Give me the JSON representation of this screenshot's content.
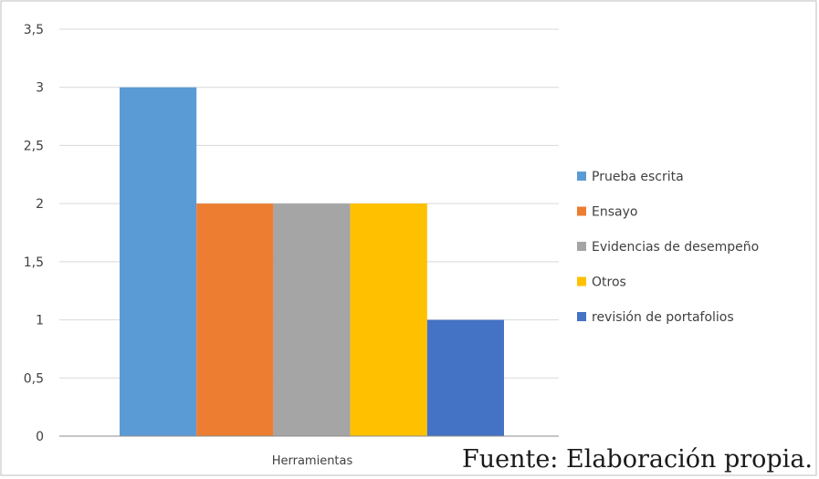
{
  "chart_data": {
    "type": "bar",
    "categories": [
      "Herramientas"
    ],
    "series": [
      {
        "name": "Prueba escrita",
        "values": [
          3
        ],
        "color": "#5B9BD5"
      },
      {
        "name": "Ensayo",
        "values": [
          2
        ],
        "color": "#ED7D31"
      },
      {
        "name": "Evidencias de desempeño",
        "values": [
          2
        ],
        "color": "#A5A5A5"
      },
      {
        "name": "Otros",
        "values": [
          2
        ],
        "color": "#FFC000"
      },
      {
        "name": "revisión de portafolios",
        "values": [
          1
        ],
        "color": "#4472C4"
      }
    ],
    "yticks": [
      "0",
      "0,5",
      "1",
      "1,5",
      "2",
      "2,5",
      "3",
      "3,5"
    ],
    "ylim": [
      0,
      3.5
    ],
    "grid": true,
    "legend_position": "right"
  },
  "source": "Fuente: Elaboración propia."
}
